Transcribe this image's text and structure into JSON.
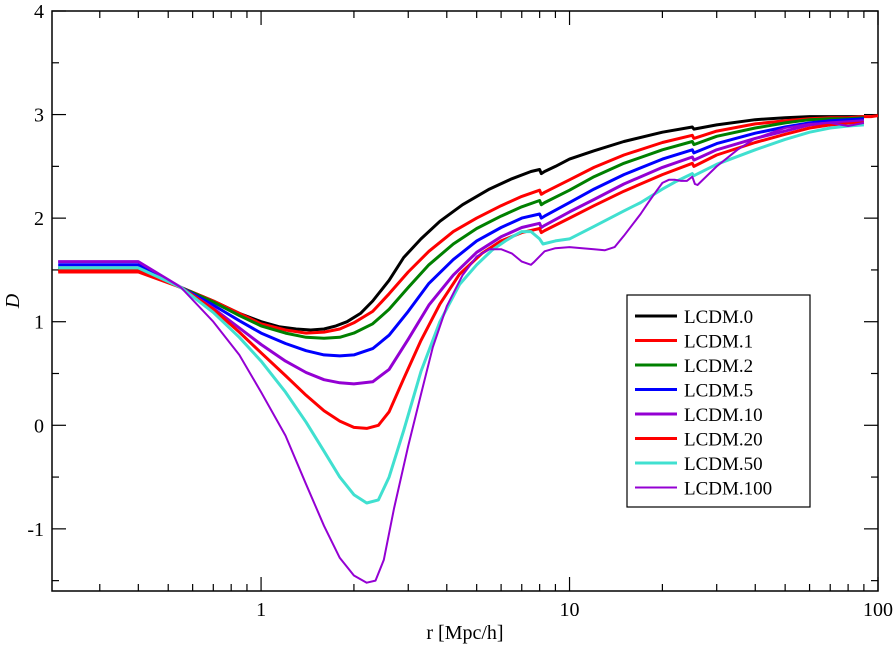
{
  "chart_data": {
    "type": "line",
    "title": "",
    "xlabel": "r [Mpc/h]",
    "ylabel": "D",
    "xscale": "log",
    "xlim": [
      0.21,
      100
    ],
    "ylim": [
      -1.6,
      4
    ],
    "x_tick_labels": [
      {
        "value": 1,
        "label": "1"
      },
      {
        "value": 10,
        "label": "10"
      },
      {
        "value": 100,
        "label": "100"
      }
    ],
    "y_tick_labels": [
      {
        "value": -1,
        "label": "-1"
      },
      {
        "value": 0,
        "label": "0"
      },
      {
        "value": 1,
        "label": "1"
      },
      {
        "value": 2,
        "label": "2"
      },
      {
        "value": 3,
        "label": "3"
      },
      {
        "value": 4,
        "label": "4"
      }
    ],
    "grid": false,
    "legend_position": "lower-right",
    "series": [
      {
        "name": "LCDM.0",
        "color": "#000000",
        "width": 3,
        "x": [
          0.22,
          0.4,
          0.55,
          0.7,
          0.85,
          1.0,
          1.15,
          1.3,
          1.45,
          1.6,
          1.75,
          1.9,
          2.1,
          2.3,
          2.6,
          2.9,
          3.3,
          3.8,
          4.5,
          5.5,
          6.5,
          7.5,
          8.0,
          8.1,
          8.3,
          9,
          10,
          12,
          15,
          20,
          25,
          25.3,
          30,
          40,
          50,
          60,
          70,
          80,
          90
        ],
        "y": [
          1.5,
          1.5,
          1.33,
          1.2,
          1.08,
          1.0,
          0.95,
          0.93,
          0.92,
          0.93,
          0.96,
          1.0,
          1.08,
          1.2,
          1.4,
          1.62,
          1.8,
          1.97,
          2.13,
          2.28,
          2.38,
          2.45,
          2.47,
          2.43,
          2.45,
          2.5,
          2.57,
          2.65,
          2.74,
          2.83,
          2.88,
          2.86,
          2.9,
          2.95,
          2.97,
          2.98,
          2.98,
          2.98,
          2.98
        ]
      },
      {
        "name": "LCDM.1",
        "color": "#ff0000",
        "width": 3,
        "x": [
          0.22,
          0.4,
          0.55,
          0.7,
          0.85,
          1.0,
          1.2,
          1.4,
          1.6,
          1.8,
          2.0,
          2.3,
          2.6,
          3.0,
          3.5,
          4.2,
          5,
          6,
          7,
          8,
          8.1,
          8.3,
          10,
          12,
          15,
          20,
          25,
          25.3,
          30,
          40,
          50,
          60,
          70,
          80,
          90,
          95,
          100
        ],
        "y": [
          1.5,
          1.5,
          1.33,
          1.2,
          1.08,
          0.98,
          0.92,
          0.89,
          0.9,
          0.93,
          0.99,
          1.1,
          1.27,
          1.48,
          1.68,
          1.87,
          2.0,
          2.12,
          2.21,
          2.27,
          2.23,
          2.25,
          2.37,
          2.49,
          2.61,
          2.73,
          2.8,
          2.77,
          2.84,
          2.91,
          2.94,
          2.96,
          2.97,
          2.97,
          2.98,
          2.98,
          2.99
        ]
      },
      {
        "name": "LCDM.2",
        "color": "#008000",
        "width": 3,
        "x": [
          0.22,
          0.4,
          0.55,
          0.7,
          0.85,
          1.0,
          1.2,
          1.4,
          1.6,
          1.8,
          2.0,
          2.3,
          2.6,
          3.0,
          3.5,
          4.2,
          5,
          6,
          7,
          8,
          8.1,
          8.3,
          10,
          12,
          15,
          20,
          25,
          25.3,
          30,
          40,
          50,
          60,
          70,
          80,
          90
        ],
        "y": [
          1.52,
          1.52,
          1.33,
          1.19,
          1.06,
          0.96,
          0.89,
          0.85,
          0.84,
          0.85,
          0.89,
          0.98,
          1.12,
          1.33,
          1.55,
          1.75,
          1.9,
          2.02,
          2.11,
          2.17,
          2.13,
          2.15,
          2.27,
          2.4,
          2.53,
          2.66,
          2.74,
          2.71,
          2.79,
          2.87,
          2.92,
          2.95,
          2.96,
          2.96,
          2.97
        ]
      },
      {
        "name": "LCDM.5",
        "color": "#0000ff",
        "width": 3,
        "x": [
          0.22,
          0.4,
          0.55,
          0.7,
          0.85,
          1.0,
          1.2,
          1.4,
          1.6,
          1.8,
          2.0,
          2.3,
          2.6,
          3.0,
          3.5,
          4.2,
          5,
          6,
          7,
          8,
          8.1,
          8.3,
          10,
          12,
          15,
          20,
          25,
          25.3,
          30,
          40,
          50,
          60,
          70,
          80,
          90
        ],
        "y": [
          1.55,
          1.55,
          1.33,
          1.16,
          1.01,
          0.89,
          0.79,
          0.72,
          0.68,
          0.67,
          0.68,
          0.74,
          0.87,
          1.1,
          1.37,
          1.6,
          1.78,
          1.91,
          2.0,
          2.04,
          2.0,
          2.02,
          2.15,
          2.28,
          2.42,
          2.57,
          2.66,
          2.63,
          2.72,
          2.82,
          2.88,
          2.92,
          2.94,
          2.95,
          2.96
        ]
      },
      {
        "name": "LCDM.10",
        "color": "#9400d3",
        "width": 3,
        "x": [
          0.22,
          0.4,
          0.55,
          0.7,
          0.85,
          1.0,
          1.2,
          1.4,
          1.6,
          1.8,
          2.0,
          2.3,
          2.6,
          3.0,
          3.5,
          4.2,
          5,
          6,
          7,
          8,
          8.1,
          8.3,
          10,
          12,
          15,
          20,
          25,
          25.3,
          30,
          40,
          50,
          60,
          70,
          80,
          90
        ],
        "y": [
          1.58,
          1.58,
          1.33,
          1.13,
          0.94,
          0.78,
          0.62,
          0.51,
          0.44,
          0.41,
          0.4,
          0.42,
          0.54,
          0.83,
          1.16,
          1.45,
          1.67,
          1.82,
          1.91,
          1.95,
          1.91,
          1.93,
          2.06,
          2.18,
          2.33,
          2.49,
          2.59,
          2.56,
          2.66,
          2.77,
          2.84,
          2.9,
          2.92,
          2.93,
          2.94
        ]
      },
      {
        "name": "LCDM.20",
        "color": "#ff0000",
        "width": 3,
        "x": [
          0.22,
          0.4,
          0.55,
          0.7,
          0.85,
          1.0,
          1.2,
          1.4,
          1.6,
          1.8,
          2.0,
          2.2,
          2.4,
          2.6,
          2.9,
          3.3,
          3.8,
          4.4,
          5.2,
          6,
          7,
          8,
          8.1,
          8.3,
          10,
          12,
          15,
          20,
          25,
          25.3,
          30,
          40,
          50,
          60,
          70,
          80,
          90
        ],
        "y": [
          1.48,
          1.48,
          1.33,
          1.12,
          0.9,
          0.7,
          0.48,
          0.29,
          0.14,
          0.04,
          -0.02,
          -0.03,
          0.0,
          0.13,
          0.45,
          0.82,
          1.17,
          1.46,
          1.66,
          1.78,
          1.86,
          1.9,
          1.86,
          1.88,
          2.0,
          2.12,
          2.26,
          2.42,
          2.53,
          2.5,
          2.61,
          2.73,
          2.81,
          2.87,
          2.9,
          2.91,
          2.92
        ]
      },
      {
        "name": "LCDM.50",
        "color": "#40e0d0",
        "width": 3,
        "x": [
          0.22,
          0.4,
          0.55,
          0.7,
          0.85,
          1.0,
          1.2,
          1.4,
          1.6,
          1.8,
          2.0,
          2.2,
          2.4,
          2.6,
          2.9,
          3.3,
          3.8,
          4.4,
          5.0,
          5.6,
          6.2,
          6.6,
          7.0,
          7.5,
          8,
          8.2,
          9,
          10,
          12,
          15,
          17,
          20,
          22,
          25,
          25.3,
          30,
          40,
          50,
          60,
          70,
          80,
          90
        ],
        "y": [
          1.52,
          1.52,
          1.33,
          1.09,
          0.85,
          0.62,
          0.32,
          0.03,
          -0.25,
          -0.5,
          -0.67,
          -0.75,
          -0.72,
          -0.5,
          -0.05,
          0.52,
          1.0,
          1.36,
          1.55,
          1.69,
          1.78,
          1.83,
          1.87,
          1.87,
          1.8,
          1.75,
          1.78,
          1.8,
          1.92,
          2.07,
          2.15,
          2.28,
          2.35,
          2.43,
          2.41,
          2.52,
          2.66,
          2.76,
          2.83,
          2.87,
          2.89,
          2.9
        ]
      },
      {
        "name": "LCDM.100",
        "color": "#9400d3",
        "width": 2,
        "x": [
          0.22,
          0.4,
          0.55,
          0.7,
          0.85,
          1.0,
          1.2,
          1.4,
          1.6,
          1.8,
          2.0,
          2.2,
          2.35,
          2.5,
          2.7,
          3.0,
          3.3,
          3.6,
          4.0,
          4.5,
          5.0,
          5.5,
          6.0,
          6.5,
          7.0,
          7.5,
          7.7,
          8.3,
          9,
          10,
          11,
          12,
          13,
          14,
          15,
          17,
          18,
          19,
          20,
          21,
          22,
          23,
          24,
          25,
          25.5,
          26,
          30,
          35,
          40,
          50,
          60,
          70,
          80,
          90
        ],
        "y": [
          1.58,
          1.58,
          1.33,
          1.0,
          0.68,
          0.32,
          -0.1,
          -0.57,
          -0.97,
          -1.28,
          -1.45,
          -1.52,
          -1.5,
          -1.3,
          -0.8,
          -0.2,
          0.3,
          0.75,
          1.15,
          1.45,
          1.63,
          1.7,
          1.7,
          1.66,
          1.58,
          1.55,
          1.58,
          1.68,
          1.71,
          1.72,
          1.71,
          1.7,
          1.69,
          1.72,
          1.83,
          2.04,
          2.15,
          2.25,
          2.34,
          2.37,
          2.37,
          2.36,
          2.36,
          2.4,
          2.33,
          2.32,
          2.5,
          2.66,
          2.77,
          2.87,
          2.91,
          2.92,
          2.89,
          2.92
        ]
      }
    ]
  }
}
